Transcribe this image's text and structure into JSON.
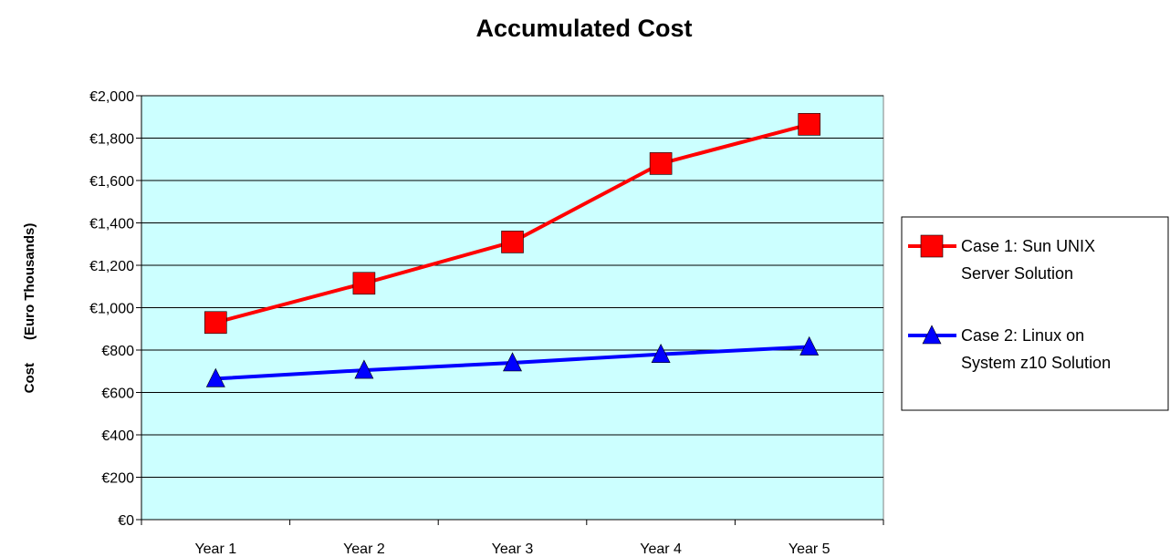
{
  "chart_data": {
    "type": "line",
    "title": "Accumulated Cost",
    "ylabel": "Cost      (Euro Thousands)",
    "xlabel": "",
    "categories": [
      "Year 1",
      "Year 2",
      "Year 3",
      "Year 4",
      "Year 5"
    ],
    "ylim": [
      0,
      2000
    ],
    "y_ticks": [
      "€0",
      "€200",
      "€400",
      "€600",
      "€800",
      "€1,000",
      "€1,200",
      "€1,400",
      "€1,600",
      "€1,800",
      "€2,000"
    ],
    "y_tick_values": [
      0,
      200,
      400,
      600,
      800,
      1000,
      1200,
      1400,
      1600,
      1800,
      2000
    ],
    "grid": true,
    "plot_background": "#ccffff",
    "legend_position": "right",
    "series": [
      {
        "name": "Case 1: Sun UNIX Server Solution",
        "legend_lines": [
          "Case 1: Sun UNIX",
          "Server Solution"
        ],
        "values": [
          930,
          1115,
          1310,
          1680,
          1865
        ],
        "color": "#ff0000",
        "marker": "square"
      },
      {
        "name": "Case 2: Linux on System z10 Solution",
        "legend_lines": [
          "Case 2: Linux on",
          "System z10 Solution"
        ],
        "values": [
          665,
          705,
          740,
          780,
          815
        ],
        "color": "#0000ff",
        "marker": "triangle"
      }
    ]
  }
}
